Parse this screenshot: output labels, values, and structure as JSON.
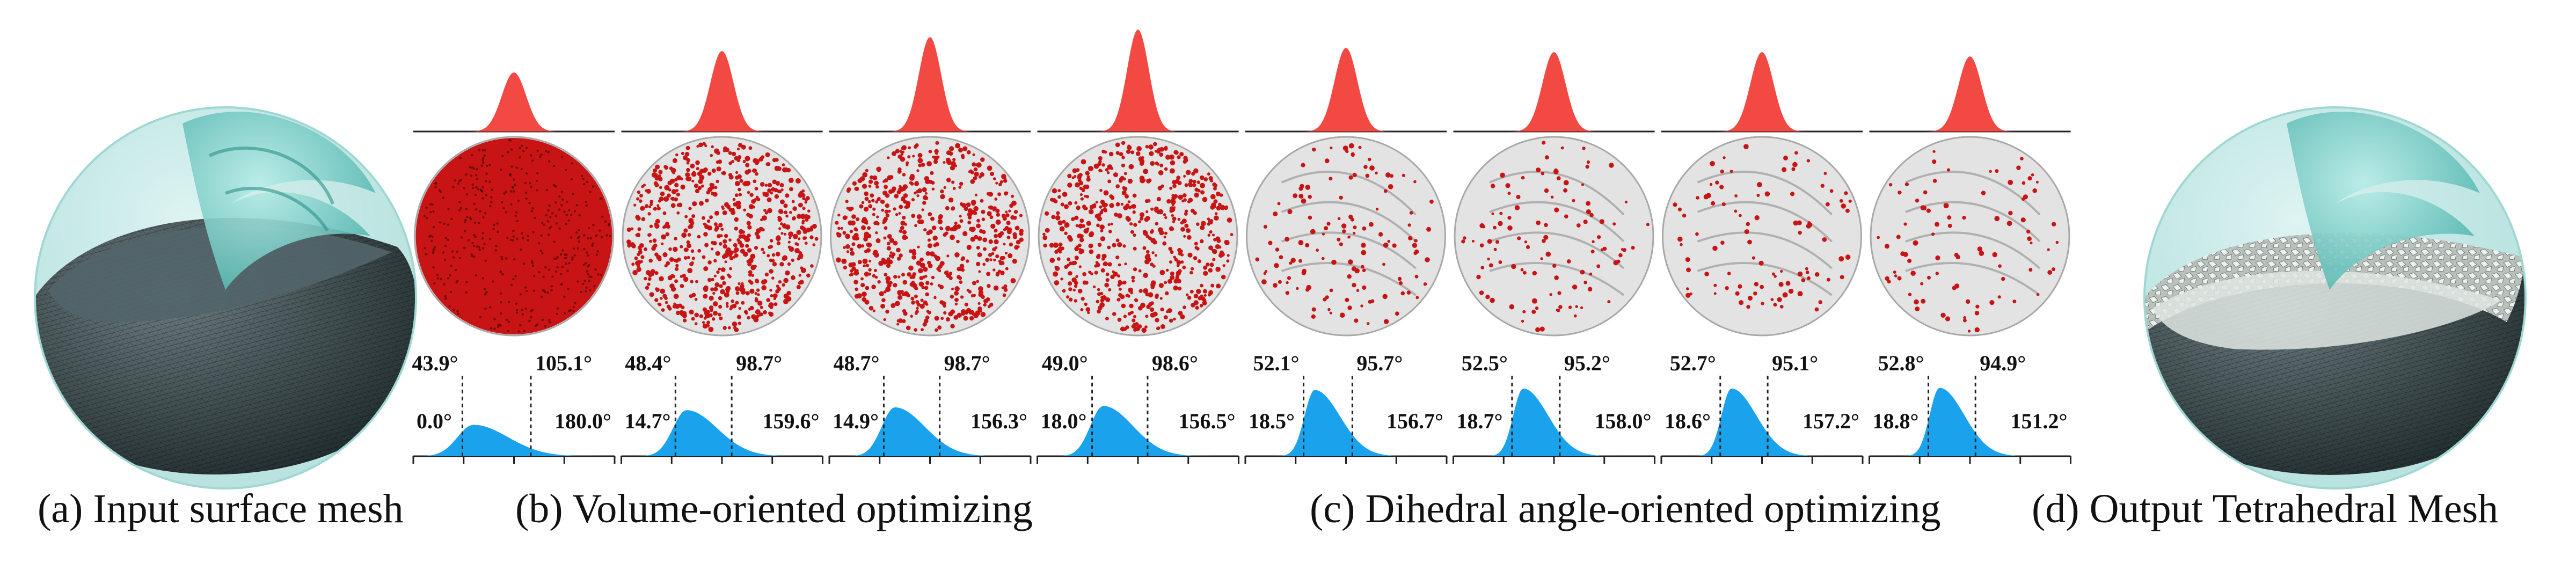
{
  "captions": {
    "a": "(a) Input surface mesh",
    "b": "(b) Volume-oriented optimizing",
    "c": "(c) Dihedral angle-oriented optimizing",
    "d": "(d) Output Tetrahedral Mesh"
  },
  "colors": {
    "volume_histogram": "#f24a43",
    "angle_histogram": "#1aa3ec",
    "bad_elements": "#c81414",
    "sphere_fill": "#e3e3e3",
    "shell_dark": "#37474a",
    "teal_glass": "#8fd6d2"
  },
  "stages": [
    {
      "stage": "input",
      "min_angle": "0.0°",
      "median_angle": "43.9°",
      "mean_angle": "105.1°",
      "max_angle": "180.0°",
      "bad_element_density": 1.0,
      "volume_peak": 0.55,
      "angle_peak": 0.45
    },
    {
      "stage": "volume-1",
      "min_angle": "14.7°",
      "median_angle": "48.4°",
      "mean_angle": "98.7°",
      "max_angle": "159.6°",
      "bad_element_density": 0.62,
      "volume_peak": 0.75,
      "angle_peak": 0.66
    },
    {
      "stage": "volume-2",
      "min_angle": "14.9°",
      "median_angle": "48.7°",
      "mean_angle": "98.7°",
      "max_angle": "156.3°",
      "bad_element_density": 0.58,
      "volume_peak": 0.88,
      "angle_peak": 0.7
    },
    {
      "stage": "volume-3",
      "min_angle": "18.0°",
      "median_angle": "49.0°",
      "mean_angle": "98.6°",
      "max_angle": "156.5°",
      "bad_element_density": 0.55,
      "volume_peak": 0.95,
      "angle_peak": 0.72
    },
    {
      "stage": "dihedral-1",
      "min_angle": "18.5°",
      "median_angle": "52.1°",
      "mean_angle": "95.7°",
      "max_angle": "156.7°",
      "bad_element_density": 0.12,
      "volume_peak": 0.78,
      "angle_peak": 0.95
    },
    {
      "stage": "dihedral-2",
      "min_angle": "18.7°",
      "median_angle": "52.5°",
      "mean_angle": "95.2°",
      "max_angle": "158.0°",
      "bad_element_density": 0.1,
      "volume_peak": 0.74,
      "angle_peak": 0.97
    },
    {
      "stage": "dihedral-3",
      "min_angle": "18.6°",
      "median_angle": "52.7°",
      "mean_angle": "95.1°",
      "max_angle": "157.2°",
      "bad_element_density": 0.09,
      "volume_peak": 0.74,
      "angle_peak": 0.97
    },
    {
      "stage": "dihedral-4",
      "min_angle": "18.8°",
      "median_angle": "52.8°",
      "mean_angle": "94.9°",
      "max_angle": "151.2°",
      "bad_element_density": 0.08,
      "volume_peak": 0.7,
      "angle_peak": 0.98
    }
  ]
}
